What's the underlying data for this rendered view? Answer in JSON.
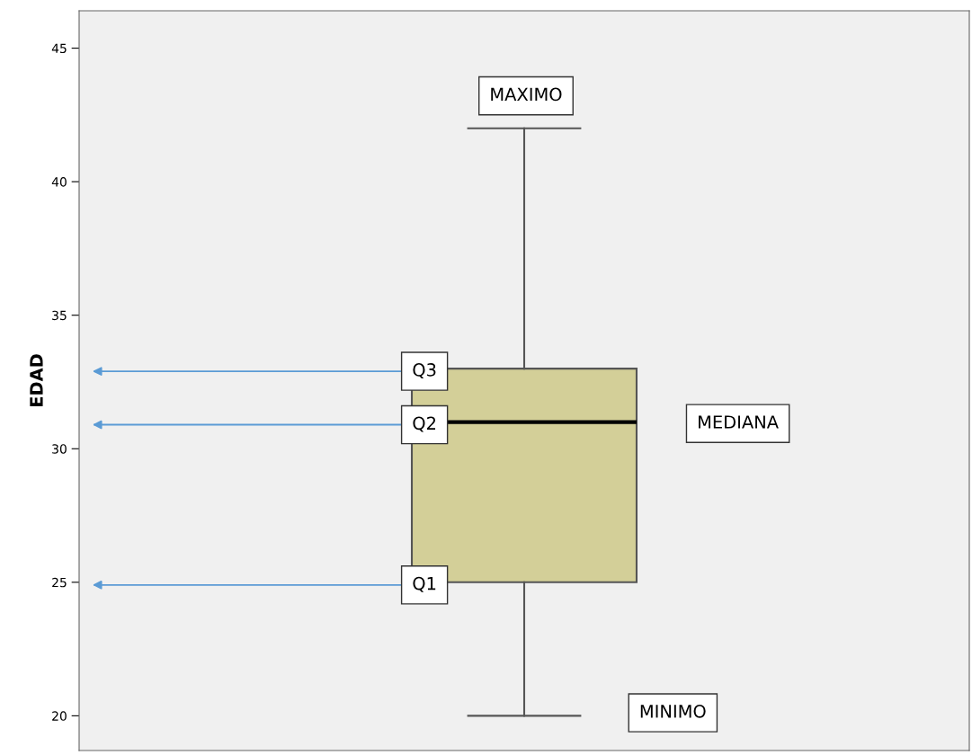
{
  "chart_data": {
    "type": "box",
    "ylabel": "EDAD",
    "categories": [
      null
    ],
    "boxes": [
      {
        "low": 20,
        "q1": 25,
        "median": 31,
        "q3": 33,
        "high": 42
      }
    ],
    "color": "#d3cf98",
    "ylim": [
      18.7,
      46.4
    ],
    "yticks": [
      20,
      25,
      30,
      35,
      40,
      45
    ],
    "tick_labels": "y",
    "grid": false,
    "annotations": [
      {
        "text": "MAXIMO",
        "y": 42
      },
      {
        "text": "Q3",
        "y": 32.9
      },
      {
        "text": "Q2",
        "y": 30.9
      },
      "MEDIANA",
      {
        "text": "Q1",
        "y": 24.9
      },
      "MINIMO"
    ]
  }
}
